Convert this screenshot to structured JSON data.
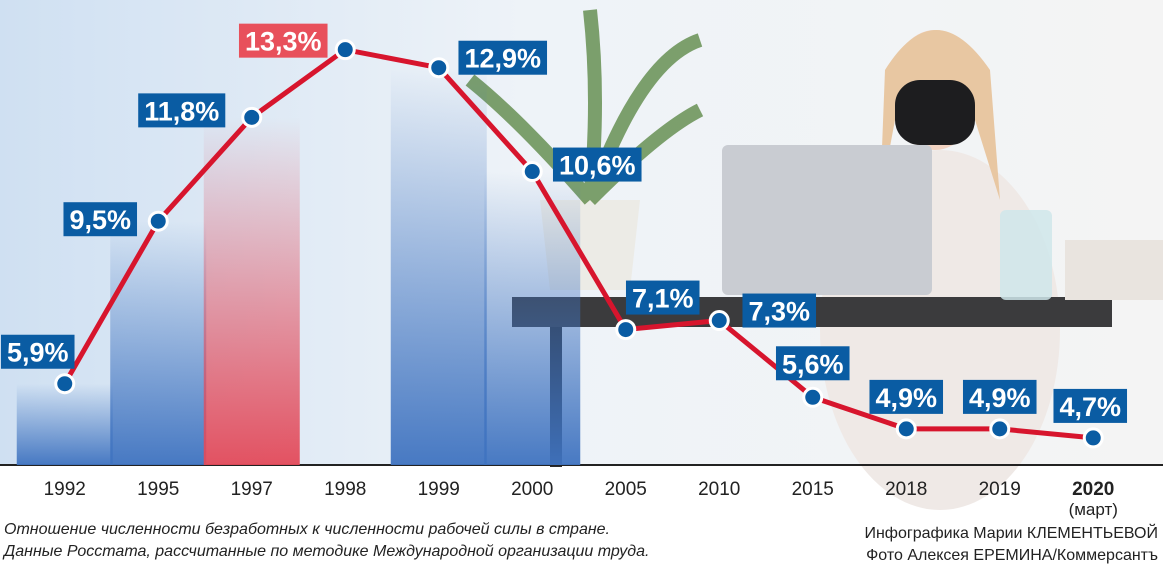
{
  "chart_data": {
    "type": "line",
    "categories": [
      "1992",
      "1995",
      "1997",
      "1998",
      "1999",
      "2000",
      "2005",
      "2010",
      "2015",
      "2018",
      "2019",
      "2020"
    ],
    "category_note": "(март)",
    "values": [
      5.9,
      9.5,
      11.8,
      13.3,
      12.9,
      10.6,
      7.1,
      7.3,
      5.6,
      4.9,
      4.9,
      4.7
    ],
    "value_labels": [
      "5,9%",
      "9,5%",
      "11,8%",
      "13,3%",
      "12,9%",
      "10,6%",
      "7,1%",
      "7,3%",
      "5,6%",
      "4,9%",
      "4,9%",
      "4,7%"
    ],
    "color": "#d7152d",
    "label_colors": [
      "#0a5ca3",
      "#0a5ca3",
      "#0a5ca3",
      "#e8505b",
      "#0a5ca3",
      "#0a5ca3",
      "#0a5ca3",
      "#0a5ca3",
      "#0a5ca3",
      "#0a5ca3",
      "#0a5ca3",
      "#0a5ca3"
    ],
    "bar_colors": [
      "#3f73c0",
      "#3f73c0",
      "#e34a5a",
      null,
      "#3f73c0",
      "#3f73c0",
      null,
      null,
      null,
      null,
      null,
      null
    ],
    "ylim": [
      4.1,
      14.4
    ],
    "caption": [
      "Отношение численности безработных к численности рабочей силы в стране.",
      "Данные Росстата, рассчитанные по методике Международной организации труда."
    ],
    "credits": [
      "Инфографика Марии КЛЕМЕНТЬЕВОЙ",
      "Фото Алексея ЕРЕМИНА/Коммерсантъ"
    ]
  }
}
